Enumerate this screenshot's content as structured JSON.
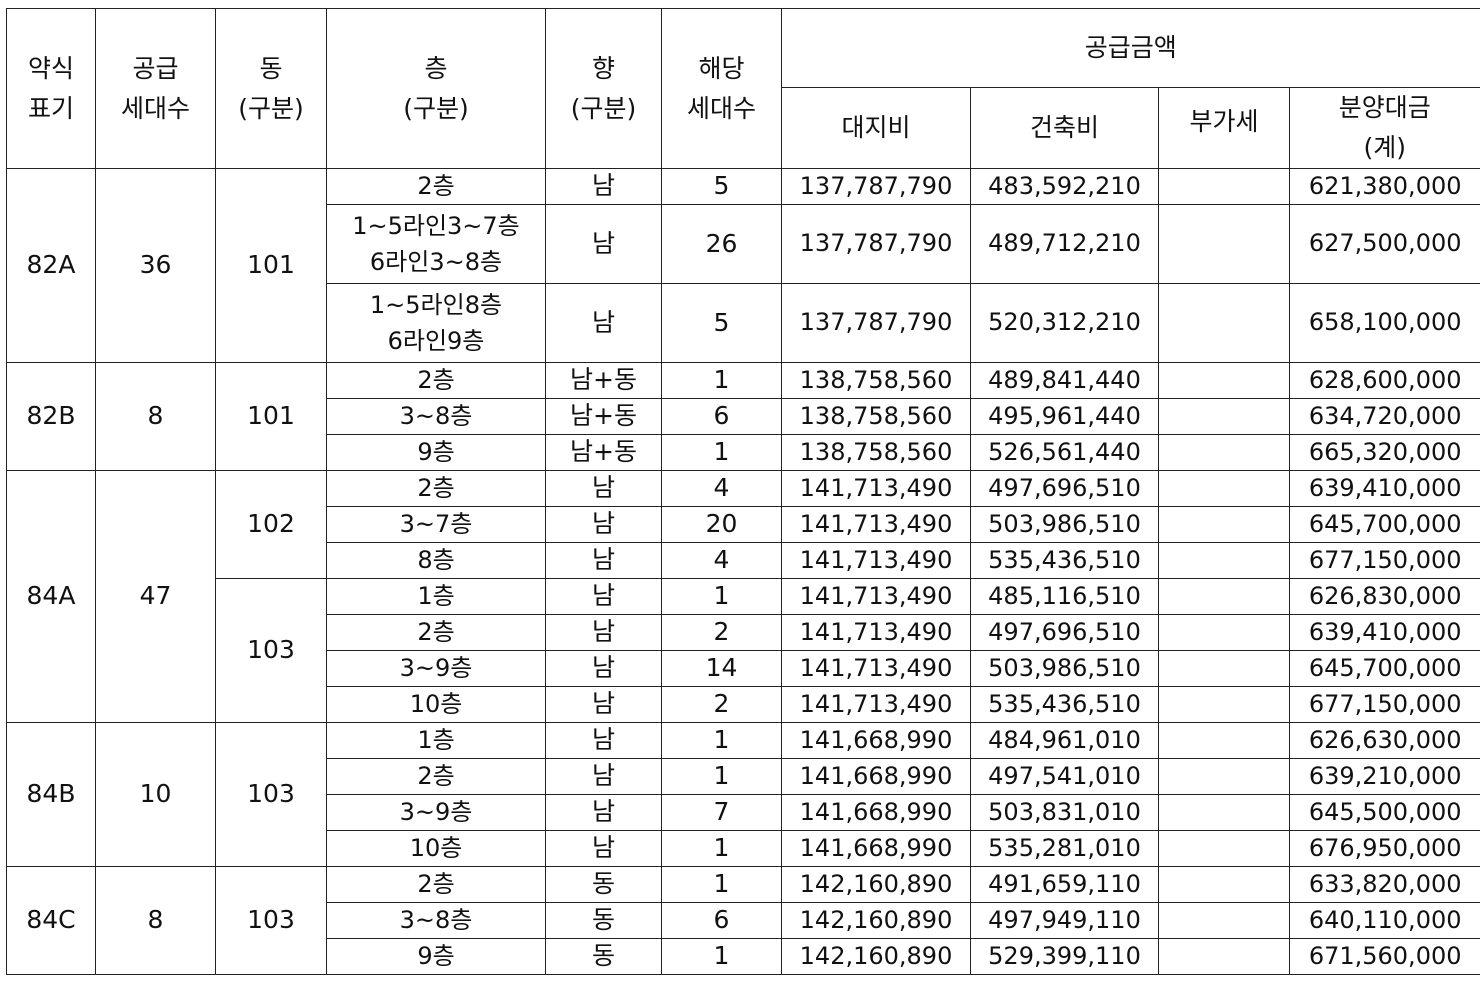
{
  "headers": {
    "type": "약식\n표기",
    "supply_units": "공급\n세대수",
    "building": "동\n(구분)",
    "floor": "층\n(구분)",
    "direction": "향\n(구분)",
    "units": "해당\n세대수",
    "supply_amount": "공급금액",
    "land_cost": "대지비",
    "building_cost": "건축비",
    "vat": "부가세",
    "total": "분양대금\n(계)"
  },
  "groups": [
    {
      "type": "82A",
      "supply_units": "36",
      "buildings": [
        {
          "building": "101",
          "rows": [
            {
              "floor": "2층",
              "dir": "남",
              "units": "5",
              "land": "137,787,790",
              "build": "483,592,210",
              "vat": "",
              "total": "621,380,000"
            },
            {
              "floor": "1~5라인3~7층\n6라인3~8층",
              "dir": "남",
              "units": "26",
              "land": "137,787,790",
              "build": "489,712,210",
              "vat": "",
              "total": "627,500,000"
            },
            {
              "floor": "1~5라인8층\n6라인9층",
              "dir": "남",
              "units": "5",
              "land": "137,787,790",
              "build": "520,312,210",
              "vat": "",
              "total": "658,100,000"
            }
          ]
        }
      ]
    },
    {
      "type": "82B",
      "supply_units": "8",
      "buildings": [
        {
          "building": "101",
          "rows": [
            {
              "floor": "2층",
              "dir": "남+동",
              "units": "1",
              "land": "138,758,560",
              "build": "489,841,440",
              "vat": "",
              "total": "628,600,000"
            },
            {
              "floor": "3~8층",
              "dir": "남+동",
              "units": "6",
              "land": "138,758,560",
              "build": "495,961,440",
              "vat": "",
              "total": "634,720,000"
            },
            {
              "floor": "9층",
              "dir": "남+동",
              "units": "1",
              "land": "138,758,560",
              "build": "526,561,440",
              "vat": "",
              "total": "665,320,000"
            }
          ]
        }
      ]
    },
    {
      "type": "84A",
      "supply_units": "47",
      "buildings": [
        {
          "building": "102",
          "rows": [
            {
              "floor": "2층",
              "dir": "남",
              "units": "4",
              "land": "141,713,490",
              "build": "497,696,510",
              "vat": "",
              "total": "639,410,000"
            },
            {
              "floor": "3~7층",
              "dir": "남",
              "units": "20",
              "land": "141,713,490",
              "build": "503,986,510",
              "vat": "",
              "total": "645,700,000"
            },
            {
              "floor": "8층",
              "dir": "남",
              "units": "4",
              "land": "141,713,490",
              "build": "535,436,510",
              "vat": "",
              "total": "677,150,000"
            }
          ]
        },
        {
          "building": "103",
          "rows": [
            {
              "floor": "1층",
              "dir": "남",
              "units": "1",
              "land": "141,713,490",
              "build": "485,116,510",
              "vat": "",
              "total": "626,830,000"
            },
            {
              "floor": "2층",
              "dir": "남",
              "units": "2",
              "land": "141,713,490",
              "build": "497,696,510",
              "vat": "",
              "total": "639,410,000"
            },
            {
              "floor": "3~9층",
              "dir": "남",
              "units": "14",
              "land": "141,713,490",
              "build": "503,986,510",
              "vat": "",
              "total": "645,700,000"
            },
            {
              "floor": "10층",
              "dir": "남",
              "units": "2",
              "land": "141,713,490",
              "build": "535,436,510",
              "vat": "",
              "total": "677,150,000"
            }
          ]
        }
      ]
    },
    {
      "type": "84B",
      "supply_units": "10",
      "buildings": [
        {
          "building": "103",
          "rows": [
            {
              "floor": "1층",
              "dir": "남",
              "units": "1",
              "land": "141,668,990",
              "build": "484,961,010",
              "vat": "",
              "total": "626,630,000"
            },
            {
              "floor": "2층",
              "dir": "남",
              "units": "1",
              "land": "141,668,990",
              "build": "497,541,010",
              "vat": "",
              "total": "639,210,000"
            },
            {
              "floor": "3~9층",
              "dir": "남",
              "units": "7",
              "land": "141,668,990",
              "build": "503,831,010",
              "vat": "",
              "total": "645,500,000"
            },
            {
              "floor": "10층",
              "dir": "남",
              "units": "1",
              "land": "141,668,990",
              "build": "535,281,010",
              "vat": "",
              "total": "676,950,000"
            }
          ]
        }
      ]
    },
    {
      "type": "84C",
      "supply_units": "8",
      "buildings": [
        {
          "building": "103",
          "rows": [
            {
              "floor": "2층",
              "dir": "동",
              "units": "1",
              "land": "142,160,890",
              "build": "491,659,110",
              "vat": "",
              "total": "633,820,000"
            },
            {
              "floor": "3~8층",
              "dir": "동",
              "units": "6",
              "land": "142,160,890",
              "build": "497,949,110",
              "vat": "",
              "total": "640,110,000"
            },
            {
              "floor": "9층",
              "dir": "동",
              "units": "1",
              "land": "142,160,890",
              "build": "529,399,110",
              "vat": "",
              "total": "671,560,000"
            }
          ]
        }
      ]
    }
  ]
}
